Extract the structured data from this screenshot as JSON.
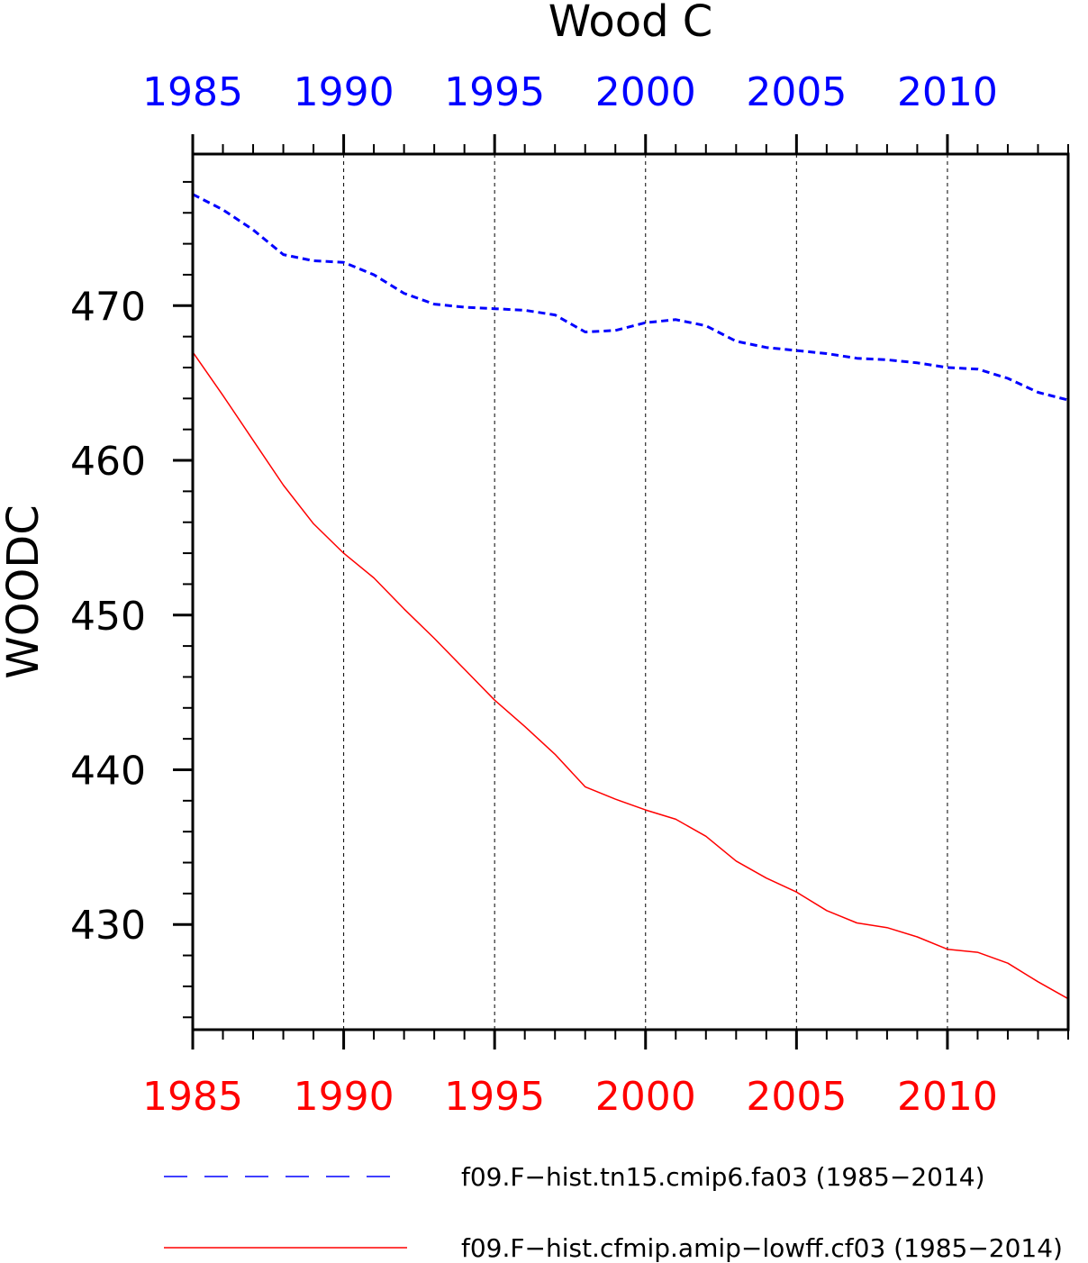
{
  "chart_data": {
    "type": "line",
    "title": "Wood C",
    "ylabel": "WOODC",
    "xlabel": "",
    "xlim": [
      1985,
      2014
    ],
    "ylim": [
      423.2,
      479.8
    ],
    "x_ticks": [
      1985,
      1990,
      1995,
      2000,
      2005,
      2010
    ],
    "y_ticks": [
      430,
      440,
      450,
      460,
      470
    ],
    "grid": "vertical dashed at major x ticks",
    "legend_position": "bottom",
    "x": [
      1985,
      1986,
      1987,
      1988,
      1989,
      1990,
      1991,
      1992,
      1993,
      1994,
      1995,
      1996,
      1997,
      1998,
      1999,
      2000,
      2001,
      2002,
      2003,
      2004,
      2005,
      2006,
      2007,
      2008,
      2009,
      2010,
      2011,
      2012,
      2013,
      2014
    ],
    "series": [
      {
        "name": "f09.F−hist.tn15.cmip6.fa03 (1985−2014)",
        "color": "#0000ff",
        "style": "dashed",
        "values": [
          477.2,
          476.2,
          474.9,
          473.3,
          472.9,
          472.8,
          472.0,
          470.8,
          470.1,
          469.9,
          469.8,
          469.7,
          469.4,
          468.3,
          468.4,
          468.9,
          469.1,
          468.7,
          467.7,
          467.3,
          467.1,
          466.9,
          466.6,
          466.5,
          466.3,
          466.0,
          465.9,
          465.3,
          464.4,
          463.9
        ]
      },
      {
        "name": "f09.F−hist.cfmip.amip−lowff.cf03 (1985−2014)",
        "color": "#ff0000",
        "style": "solid",
        "values": [
          467.0,
          464.2,
          461.3,
          458.4,
          455.9,
          454.0,
          452.4,
          450.4,
          448.5,
          446.5,
          444.5,
          442.8,
          441.0,
          438.9,
          438.1,
          437.4,
          436.8,
          435.7,
          434.1,
          433.0,
          432.1,
          430.9,
          430.1,
          429.8,
          429.2,
          428.4,
          428.2,
          427.5,
          426.3,
          425.2
        ]
      }
    ]
  }
}
